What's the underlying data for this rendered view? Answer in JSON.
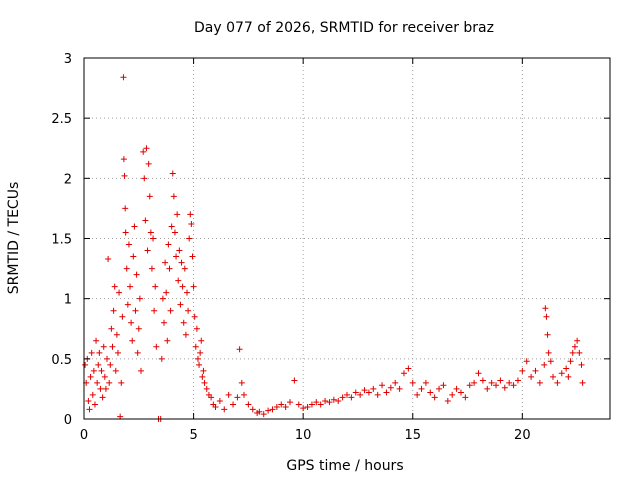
{
  "chart_data": {
    "type": "scatter",
    "title": "Day 077 of 2026, SRMTID for receiver braz",
    "xlabel": "GPS time / hours",
    "ylabel": "SRMTID / TECUs",
    "xlim": [
      0,
      24
    ],
    "ylim": [
      0,
      3
    ],
    "xticks": [
      0,
      5,
      10,
      15,
      20
    ],
    "yticks": [
      0,
      0.5,
      1,
      1.5,
      2,
      2.5,
      3
    ],
    "xtick_labels": [
      "0",
      "5",
      "10",
      "15",
      "20"
    ],
    "ytick_labels": [
      "0",
      "0.5",
      "1",
      "1.5",
      "2",
      "2.5",
      "3"
    ],
    "grid": true,
    "marker": "+",
    "series": [
      {
        "name": "SRMTID",
        "color": "#e00000",
        "points": [
          [
            0.05,
            0.45
          ],
          [
            0.1,
            0.3
          ],
          [
            0.15,
            0.5
          ],
          [
            0.2,
            0.15
          ],
          [
            0.25,
            0.08
          ],
          [
            0.3,
            0.35
          ],
          [
            0.35,
            0.55
          ],
          [
            0.4,
            0.2
          ],
          [
            0.45,
            0.4
          ],
          [
            0.5,
            0.12
          ],
          [
            0.55,
            0.65
          ],
          [
            0.6,
            0.3
          ],
          [
            0.65,
            0.45
          ],
          [
            0.7,
            0.55
          ],
          [
            0.75,
            0.25
          ],
          [
            0.8,
            0.4
          ],
          [
            0.85,
            0.18
          ],
          [
            0.9,
            0.6
          ],
          [
            0.95,
            0.35
          ],
          [
            1.0,
            0.25
          ],
          [
            1.05,
            0.5
          ],
          [
            1.1,
            1.33
          ],
          [
            1.15,
            0.3
          ],
          [
            1.2,
            0.45
          ],
          [
            1.25,
            0.75
          ],
          [
            1.3,
            0.6
          ],
          [
            1.35,
            0.9
          ],
          [
            1.4,
            1.1
          ],
          [
            1.45,
            0.4
          ],
          [
            1.5,
            0.7
          ],
          [
            1.55,
            0.55
          ],
          [
            1.6,
            1.05
          ],
          [
            1.65,
            0.02
          ],
          [
            1.7,
            0.3
          ],
          [
            1.75,
            0.85
          ],
          [
            1.8,
            2.84
          ],
          [
            1.82,
            2.16
          ],
          [
            1.85,
            2.02
          ],
          [
            1.88,
            1.75
          ],
          [
            1.9,
            1.55
          ],
          [
            1.95,
            1.25
          ],
          [
            2.0,
            0.95
          ],
          [
            2.05,
            1.45
          ],
          [
            2.1,
            1.1
          ],
          [
            2.15,
            0.8
          ],
          [
            2.2,
            0.65
          ],
          [
            2.25,
            1.35
          ],
          [
            2.3,
            1.6
          ],
          [
            2.35,
            0.9
          ],
          [
            2.4,
            1.2
          ],
          [
            2.45,
            0.55
          ],
          [
            2.5,
            0.75
          ],
          [
            2.55,
            1.0
          ],
          [
            2.6,
            0.4
          ],
          [
            2.7,
            2.22
          ],
          [
            2.75,
            2.0
          ],
          [
            2.8,
            1.65
          ],
          [
            2.85,
            2.25
          ],
          [
            2.9,
            1.4
          ],
          [
            2.95,
            2.12
          ],
          [
            3.0,
            1.85
          ],
          [
            3.05,
            1.55
          ],
          [
            3.1,
            1.25
          ],
          [
            3.15,
            1.5
          ],
          [
            3.2,
            0.9
          ],
          [
            3.25,
            1.1
          ],
          [
            3.3,
            0.6
          ],
          [
            3.4,
            0.0
          ],
          [
            3.5,
            0.0
          ],
          [
            3.55,
            0.5
          ],
          [
            3.6,
            1.0
          ],
          [
            3.65,
            0.8
          ],
          [
            3.7,
            1.3
          ],
          [
            3.75,
            1.05
          ],
          [
            3.8,
            0.65
          ],
          [
            3.85,
            1.45
          ],
          [
            3.9,
            1.25
          ],
          [
            3.95,
            0.9
          ],
          [
            4.0,
            1.6
          ],
          [
            4.05,
            2.04
          ],
          [
            4.1,
            1.85
          ],
          [
            4.15,
            1.55
          ],
          [
            4.2,
            1.35
          ],
          [
            4.25,
            1.7
          ],
          [
            4.3,
            1.15
          ],
          [
            4.35,
            1.4
          ],
          [
            4.4,
            0.95
          ],
          [
            4.45,
            1.3
          ],
          [
            4.5,
            1.1
          ],
          [
            4.55,
            0.8
          ],
          [
            4.6,
            1.25
          ],
          [
            4.65,
            0.7
          ],
          [
            4.7,
            1.05
          ],
          [
            4.75,
            0.9
          ],
          [
            4.8,
            1.5
          ],
          [
            4.85,
            1.7
          ],
          [
            4.9,
            1.62
          ],
          [
            4.95,
            1.35
          ],
          [
            5.0,
            1.1
          ],
          [
            5.05,
            0.85
          ],
          [
            5.1,
            0.6
          ],
          [
            5.15,
            0.75
          ],
          [
            5.2,
            0.5
          ],
          [
            5.25,
            0.45
          ],
          [
            5.3,
            0.55
          ],
          [
            5.35,
            0.65
          ],
          [
            5.4,
            0.35
          ],
          [
            5.45,
            0.4
          ],
          [
            5.5,
            0.3
          ],
          [
            5.6,
            0.25
          ],
          [
            5.7,
            0.2
          ],
          [
            5.8,
            0.18
          ],
          [
            5.9,
            0.12
          ],
          [
            6.0,
            0.1
          ],
          [
            6.2,
            0.15
          ],
          [
            6.4,
            0.08
          ],
          [
            6.6,
            0.2
          ],
          [
            6.8,
            0.12
          ],
          [
            7.0,
            0.18
          ],
          [
            7.1,
            0.58
          ],
          [
            7.2,
            0.3
          ],
          [
            7.3,
            0.2
          ],
          [
            7.5,
            0.12
          ],
          [
            7.7,
            0.08
          ],
          [
            7.9,
            0.05
          ],
          [
            8.0,
            0.06
          ],
          [
            8.2,
            0.04
          ],
          [
            8.4,
            0.07
          ],
          [
            8.6,
            0.08
          ],
          [
            8.8,
            0.1
          ],
          [
            9.0,
            0.12
          ],
          [
            9.2,
            0.1
          ],
          [
            9.4,
            0.14
          ],
          [
            9.6,
            0.32
          ],
          [
            9.8,
            0.12
          ],
          [
            10.0,
            0.09
          ],
          [
            10.2,
            0.1
          ],
          [
            10.4,
            0.12
          ],
          [
            10.6,
            0.14
          ],
          [
            10.8,
            0.12
          ],
          [
            11.0,
            0.15
          ],
          [
            11.2,
            0.14
          ],
          [
            11.4,
            0.16
          ],
          [
            11.6,
            0.15
          ],
          [
            11.8,
            0.18
          ],
          [
            12.0,
            0.2
          ],
          [
            12.2,
            0.18
          ],
          [
            12.4,
            0.22
          ],
          [
            12.6,
            0.2
          ],
          [
            12.8,
            0.24
          ],
          [
            13.0,
            0.22
          ],
          [
            13.2,
            0.25
          ],
          [
            13.4,
            0.2
          ],
          [
            13.6,
            0.28
          ],
          [
            13.8,
            0.22
          ],
          [
            14.0,
            0.26
          ],
          [
            14.2,
            0.3
          ],
          [
            14.4,
            0.25
          ],
          [
            14.6,
            0.38
          ],
          [
            14.8,
            0.42
          ],
          [
            15.0,
            0.3
          ],
          [
            15.2,
            0.2
          ],
          [
            15.4,
            0.25
          ],
          [
            15.6,
            0.3
          ],
          [
            15.8,
            0.22
          ],
          [
            16.0,
            0.18
          ],
          [
            16.2,
            0.25
          ],
          [
            16.4,
            0.28
          ],
          [
            16.6,
            0.15
          ],
          [
            16.8,
            0.2
          ],
          [
            17.0,
            0.25
          ],
          [
            17.2,
            0.22
          ],
          [
            17.4,
            0.18
          ],
          [
            17.6,
            0.28
          ],
          [
            17.8,
            0.3
          ],
          [
            18.0,
            0.38
          ],
          [
            18.2,
            0.32
          ],
          [
            18.4,
            0.25
          ],
          [
            18.6,
            0.3
          ],
          [
            18.8,
            0.28
          ],
          [
            19.0,
            0.32
          ],
          [
            19.2,
            0.26
          ],
          [
            19.4,
            0.3
          ],
          [
            19.6,
            0.28
          ],
          [
            19.8,
            0.32
          ],
          [
            20.0,
            0.4
          ],
          [
            20.2,
            0.48
          ],
          [
            20.4,
            0.35
          ],
          [
            20.6,
            0.4
          ],
          [
            20.8,
            0.3
          ],
          [
            21.0,
            0.45
          ],
          [
            21.05,
            0.92
          ],
          [
            21.1,
            0.85
          ],
          [
            21.15,
            0.7
          ],
          [
            21.2,
            0.55
          ],
          [
            21.3,
            0.48
          ],
          [
            21.4,
            0.35
          ],
          [
            21.6,
            0.3
          ],
          [
            21.8,
            0.38
          ],
          [
            22.0,
            0.42
          ],
          [
            22.1,
            0.35
          ],
          [
            22.2,
            0.48
          ],
          [
            22.3,
            0.55
          ],
          [
            22.4,
            0.6
          ],
          [
            22.5,
            0.65
          ],
          [
            22.6,
            0.55
          ],
          [
            22.7,
            0.45
          ],
          [
            22.75,
            0.3
          ]
        ]
      }
    ]
  }
}
